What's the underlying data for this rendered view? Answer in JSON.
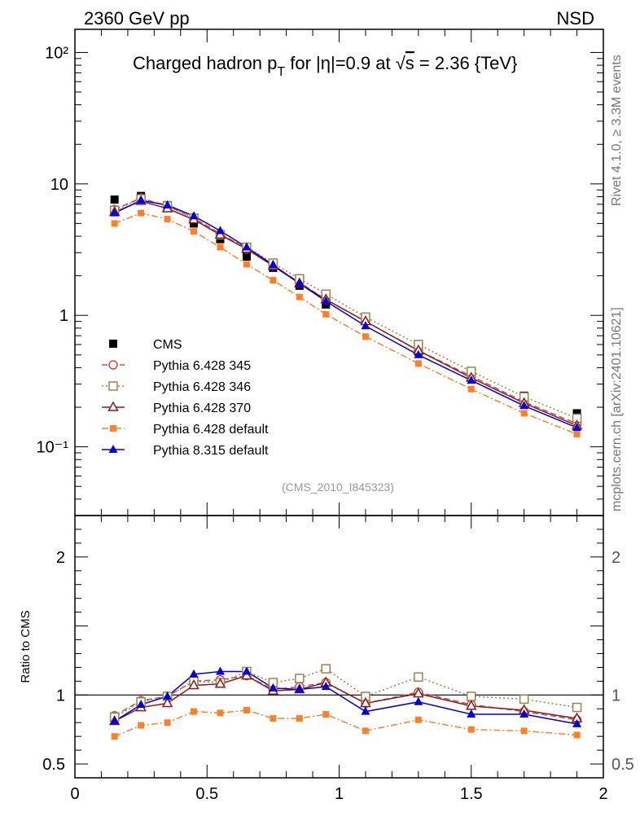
{
  "header": {
    "left": "2360 GeV pp",
    "right": "NSD"
  },
  "side_labels": {
    "rivet": "Rivet 4.1.0, ≥ 3.3M events",
    "mcplots": "mcplots.cern.ch [arXiv:2401.10621]"
  },
  "chart_data": [
    {
      "type": "scatter",
      "panel": "main",
      "title_parts": {
        "pre": "Charged hadron p",
        "sub": "T",
        "mid": " for |η|=0.9 at ",
        "sqrt": "√",
        "s": "s",
        "post": " = 2.36 {TeV}"
      },
      "yscale": "log",
      "xlim": [
        0,
        2
      ],
      "ylim": [
        0.03,
        150
      ],
      "ytick_labels": [
        "10⁻¹",
        "1",
        "10",
        "10²"
      ],
      "ytick_values": [
        0.1,
        1,
        10,
        100
      ],
      "annotation": "(CMS_2010_I845323)",
      "legend_position": "middle-left",
      "x": [
        0.15,
        0.25,
        0.35,
        0.45,
        0.55,
        0.65,
        0.75,
        0.85,
        0.95,
        1.1,
        1.3,
        1.5,
        1.7,
        1.9
      ],
      "series": [
        {
          "name": "CMS",
          "color": "#000000",
          "marker": "square-filled",
          "line": "none",
          "values": [
            7.6,
            8.1,
            6.9,
            5.0,
            3.8,
            2.8,
            2.3,
            1.68,
            1.21,
            0.95,
            0.53,
            0.37,
            0.245,
            0.18
          ]
        },
        {
          "name": "Pythia 6.428 345",
          "color": "#c0504d",
          "marker": "circle-open",
          "line": "dashed",
          "values": [
            6.4,
            7.8,
            6.8,
            5.5,
            4.2,
            3.2,
            2.4,
            1.78,
            1.32,
            0.9,
            0.54,
            0.345,
            0.22,
            0.15
          ]
        },
        {
          "name": "Pythia 6.428 346",
          "color": "#a0804a",
          "marker": "square-open",
          "line": "dotted",
          "values": [
            6.3,
            7.7,
            6.8,
            5.5,
            4.1,
            3.3,
            2.5,
            1.9,
            1.45,
            0.97,
            0.6,
            0.375,
            0.24,
            0.165
          ]
        },
        {
          "name": "Pythia 6.428 370",
          "color": "#8b1a1a",
          "marker": "triangle-open",
          "line": "solid",
          "values": [
            6.1,
            7.4,
            6.5,
            5.35,
            4.1,
            3.2,
            2.38,
            1.75,
            1.32,
            0.9,
            0.54,
            0.335,
            0.215,
            0.145
          ]
        },
        {
          "name": "Pythia 6.428 default",
          "color": "#ff7f2a",
          "marker": "square-small",
          "line": "dashdot",
          "values": [
            5.0,
            6.0,
            5.4,
            4.35,
            3.3,
            2.45,
            1.85,
            1.38,
            1.02,
            0.69,
            0.43,
            0.275,
            0.18,
            0.125
          ]
        },
        {
          "name": "Pythia 8.315 default",
          "color": "#0000dd",
          "marker": "triangle-filled",
          "line": "solid",
          "values": [
            6.0,
            7.5,
            6.9,
            5.7,
            4.4,
            3.3,
            2.42,
            1.75,
            1.28,
            0.83,
            0.5,
            0.32,
            0.205,
            0.14
          ]
        }
      ]
    },
    {
      "type": "scatter",
      "panel": "ratio",
      "ylabel": "Ratio to CMS",
      "xlabel": "",
      "xlim": [
        0,
        2
      ],
      "ylim": [
        0.4,
        2.3
      ],
      "ytick_labels": [
        "0.5",
        "1",
        "2"
      ],
      "ytick_values": [
        0.5,
        1,
        2
      ],
      "xtick_labels": [
        "0",
        "0.5",
        "1",
        "1.5",
        "2"
      ],
      "xtick_values": [
        0,
        0.5,
        1,
        1.5,
        2
      ],
      "reference_line": 1,
      "x": [
        0.15,
        0.25,
        0.35,
        0.45,
        0.55,
        0.65,
        0.75,
        0.85,
        0.95,
        1.1,
        1.3,
        1.5,
        1.7,
        1.9
      ],
      "series": [
        {
          "name": "Pythia 6.428 345",
          "values": [
            0.85,
            0.96,
            0.99,
            1.1,
            1.11,
            1.14,
            1.04,
            1.06,
            1.09,
            0.94,
            1.02,
            0.93,
            0.88,
            0.82
          ]
        },
        {
          "name": "Pythia 6.428 346",
          "values": [
            0.84,
            0.95,
            0.99,
            1.1,
            1.09,
            1.17,
            1.09,
            1.12,
            1.19,
            0.99,
            1.13,
            0.99,
            0.97,
            0.91
          ]
        },
        {
          "name": "Pythia 6.428 370",
          "values": [
            0.81,
            0.91,
            0.94,
            1.07,
            1.08,
            1.14,
            1.03,
            1.04,
            1.09,
            0.94,
            1.01,
            0.92,
            0.89,
            0.83
          ]
        },
        {
          "name": "Pythia 6.428 default",
          "values": [
            0.7,
            0.78,
            0.8,
            0.88,
            0.87,
            0.89,
            0.83,
            0.83,
            0.86,
            0.74,
            0.82,
            0.75,
            0.74,
            0.71
          ]
        },
        {
          "name": "Pythia 8.315 default",
          "values": [
            0.81,
            0.93,
            0.99,
            1.15,
            1.17,
            1.17,
            1.05,
            1.04,
            1.06,
            0.88,
            0.95,
            0.86,
            0.86,
            0.79
          ]
        }
      ]
    }
  ]
}
